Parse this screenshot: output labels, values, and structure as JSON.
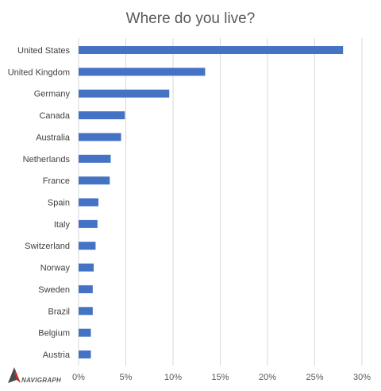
{
  "chart_data": {
    "type": "bar",
    "orientation": "horizontal",
    "title": "Where do you live?",
    "xlabel": "",
    "ylabel": "",
    "categories": [
      "United States",
      "United Kingdom",
      "Germany",
      "Canada",
      "Australia",
      "Netherlands",
      "France",
      "Spain",
      "Italy",
      "Switzerland",
      "Norway",
      "Sweden",
      "Brazil",
      "Belgium",
      "Austria"
    ],
    "values": [
      28.0,
      13.4,
      9.6,
      4.9,
      4.5,
      3.4,
      3.3,
      2.1,
      2.0,
      1.8,
      1.6,
      1.5,
      1.5,
      1.3,
      1.3
    ],
    "xlim": [
      0,
      30
    ],
    "x_ticks": [
      "0%",
      "5%",
      "10%",
      "15%",
      "20%",
      "25%",
      "30%"
    ],
    "grid": true,
    "bar_color": "#4472C4",
    "gridline_color": "#d9d9d9"
  },
  "brand": {
    "name": "NAVIGRAPH",
    "colors": {
      "dark": "#4a4a4a",
      "accent": "#c0262c"
    }
  }
}
